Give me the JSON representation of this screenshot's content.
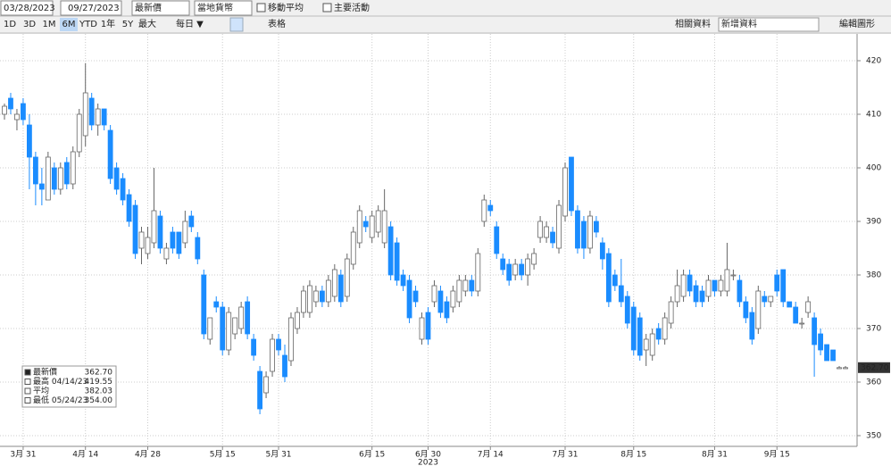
{
  "toolbar": {
    "start_date": "03/28/2023",
    "end_date": "09/27/2023",
    "price_field": "最新價",
    "currency": "當地貨幣",
    "moving_avg": "移動平均",
    "events": "主要活動",
    "periods": [
      "1D",
      "3D",
      "1M",
      "6M",
      "YTD",
      "1年",
      "5Y",
      "最大"
    ],
    "active_period": "6M",
    "frequency": "每日 ▼",
    "table": "表格",
    "related": "相關資料",
    "add_data": "新增資料",
    "edit": "編輯圖形"
  },
  "chart_data": {
    "type": "candlestick",
    "up_color": "#ffffff",
    "up_stroke": "#666666",
    "down_color": "#1a8cff",
    "ylim": [
      348,
      425
    ],
    "yticks": [
      350,
      360,
      370,
      380,
      390,
      400,
      410,
      420
    ],
    "grid": true,
    "x_year": "2023",
    "last_label": {
      "value": 362.7,
      "label": "362.70"
    },
    "legend": [
      {
        "label": "最新價",
        "value": "362.70"
      },
      {
        "label": "最高 04/14/23",
        "value": "419.55"
      },
      {
        "label": "平均",
        "value": "382.03"
      },
      {
        "label": "最低 05/24/23",
        "value": "354.00"
      }
    ],
    "categories": [
      null,
      null,
      null,
      "3月 31",
      null,
      null,
      null,
      null,
      null,
      null,
      null,
      null,
      null,
      "4月 14",
      null,
      null,
      null,
      null,
      null,
      null,
      null,
      null,
      null,
      "4月 28",
      null,
      null,
      null,
      null,
      null,
      null,
      null,
      null,
      null,
      null,
      null,
      "5月 15",
      null,
      null,
      null,
      null,
      null,
      null,
      null,
      null,
      "5月 31",
      null,
      null,
      null,
      null,
      null,
      null,
      null,
      null,
      null,
      null,
      null,
      null,
      null,
      null,
      "6月 15",
      null,
      null,
      null,
      null,
      null,
      null,
      null,
      null,
      "6月 30",
      null,
      null,
      null,
      null,
      null,
      null,
      null,
      null,
      null,
      "7月 14",
      null,
      null,
      null,
      null,
      null,
      null,
      null,
      null,
      null,
      null,
      null,
      "7月 31",
      null,
      null,
      null,
      null,
      null,
      null,
      null,
      null,
      null,
      null,
      "8月 15",
      null,
      null,
      null,
      null,
      null,
      null,
      null,
      null,
      null,
      null,
      null,
      null,
      "8月 31",
      null,
      null,
      null,
      null,
      null,
      null,
      null,
      null,
      null,
      "9月 15",
      null,
      null,
      null,
      null,
      null,
      null,
      null,
      null,
      null,
      null,
      null
    ],
    "ohlc": [
      [
        410,
        412,
        409,
        411.5
      ],
      [
        413,
        414,
        410,
        411
      ],
      [
        409,
        411,
        407,
        410
      ],
      [
        412,
        413,
        408,
        409
      ],
      [
        408,
        410,
        396,
        402
      ],
      [
        402,
        403,
        393,
        397
      ],
      [
        397,
        400,
        393,
        396
      ],
      [
        394,
        403,
        394,
        402
      ],
      [
        400,
        401,
        395,
        396
      ],
      [
        396,
        401,
        395,
        400
      ],
      [
        401,
        402,
        396,
        397
      ],
      [
        397,
        404,
        396,
        403
      ],
      [
        403,
        411,
        402,
        410
      ],
      [
        406,
        419.55,
        404,
        414
      ],
      [
        413,
        414,
        407,
        408
      ],
      [
        408,
        412,
        406,
        411
      ],
      [
        411,
        411,
        407,
        408
      ],
      [
        407,
        408,
        397,
        398
      ],
      [
        400,
        401,
        395,
        396
      ],
      [
        398,
        399,
        393,
        394
      ],
      [
        395,
        396,
        389,
        390
      ],
      [
        393,
        394,
        383,
        384
      ],
      [
        385,
        389,
        382,
        388
      ],
      [
        384,
        389,
        383,
        387
      ],
      [
        386,
        400,
        385,
        392
      ],
      [
        391,
        392,
        384,
        385
      ],
      [
        383,
        386,
        382,
        385
      ],
      [
        388,
        389,
        384,
        385
      ],
      [
        388,
        388,
        383,
        384
      ],
      [
        386,
        392,
        385,
        390
      ],
      [
        391,
        392,
        388,
        389
      ],
      [
        387,
        388,
        382,
        383
      ],
      [
        380,
        381,
        368,
        369
      ],
      [
        368,
        372,
        367,
        372
      ],
      [
        375,
        376,
        373,
        374
      ],
      [
        374,
        375,
        365,
        366
      ],
      [
        366,
        374,
        365,
        373
      ],
      [
        369,
        372,
        368,
        372
      ],
      [
        370,
        375,
        369,
        374
      ],
      [
        375,
        376,
        368,
        369
      ],
      [
        368,
        369,
        364,
        365
      ],
      [
        362,
        363,
        354,
        355
      ],
      [
        358,
        362,
        357,
        361
      ],
      [
        362,
        369,
        361,
        368
      ],
      [
        368,
        369,
        365,
        366
      ],
      [
        365,
        367,
        360,
        361
      ],
      [
        364,
        373,
        363,
        372
      ],
      [
        370,
        374,
        369,
        373
      ],
      [
        373,
        378,
        372,
        377
      ],
      [
        373,
        379,
        372,
        378
      ],
      [
        375,
        378,
        374,
        377
      ],
      [
        377,
        378,
        374,
        375
      ],
      [
        375,
        380,
        374,
        379
      ],
      [
        376,
        382,
        375,
        381
      ],
      [
        380,
        381,
        374,
        375
      ],
      [
        376,
        384,
        375,
        383
      ],
      [
        382,
        389,
        381,
        388
      ],
      [
        386,
        393,
        385,
        392
      ],
      [
        390,
        391,
        388,
        389
      ],
      [
        387,
        392,
        386,
        391
      ],
      [
        388,
        393,
        387,
        392
      ],
      [
        386,
        396,
        385,
        392
      ],
      [
        389,
        390,
        379,
        380
      ],
      [
        386,
        387,
        378,
        379
      ],
      [
        380,
        381,
        377,
        378
      ],
      [
        379,
        380,
        371,
        372
      ],
      [
        377,
        378,
        374,
        375
      ],
      [
        368,
        373,
        367,
        372
      ],
      [
        373,
        374,
        367,
        368
      ],
      [
        375,
        379,
        374,
        378
      ],
      [
        377,
        378,
        372,
        373
      ],
      [
        375,
        376,
        371,
        372
      ],
      [
        374,
        378,
        373,
        377
      ],
      [
        375,
        380,
        374,
        379
      ],
      [
        377,
        380,
        376,
        379
      ],
      [
        379,
        380,
        376,
        377
      ],
      [
        377,
        385,
        376,
        384
      ],
      [
        390,
        395,
        389,
        394
      ],
      [
        393,
        394,
        391,
        392
      ],
      [
        389,
        390,
        383,
        384
      ],
      [
        383,
        384,
        380,
        381
      ],
      [
        382,
        383,
        378,
        379
      ],
      [
        380,
        383,
        379,
        382
      ],
      [
        382,
        383,
        379,
        380
      ],
      [
        380,
        384,
        378,
        383
      ],
      [
        382,
        385,
        381,
        384
      ],
      [
        387,
        391,
        386,
        390
      ],
      [
        387,
        390,
        386,
        389
      ],
      [
        388,
        389,
        385,
        386
      ],
      [
        385,
        394,
        384,
        393
      ],
      [
        391,
        401,
        390,
        400
      ],
      [
        402,
        402,
        391,
        392
      ],
      [
        392,
        393,
        384,
        385
      ],
      [
        390,
        391,
        383,
        385
      ],
      [
        385,
        392,
        384,
        391
      ],
      [
        390,
        391,
        387,
        388
      ],
      [
        386,
        387,
        381,
        383
      ],
      [
        384,
        385,
        374,
        375
      ],
      [
        380,
        381,
        377,
        378
      ],
      [
        378,
        383,
        374,
        375
      ],
      [
        376,
        377,
        370,
        371
      ],
      [
        374,
        375,
        365,
        366
      ],
      [
        372,
        373,
        364,
        365
      ],
      [
        366,
        369,
        363,
        368
      ],
      [
        365,
        370,
        364,
        369
      ],
      [
        370,
        371,
        367,
        368
      ],
      [
        368,
        373,
        367,
        372
      ],
      [
        371,
        376,
        370,
        375
      ],
      [
        375,
        381,
        374,
        378
      ],
      [
        376,
        381,
        375,
        380
      ],
      [
        380,
        381,
        376,
        377
      ],
      [
        378,
        379,
        374,
        375
      ],
      [
        377,
        378,
        374,
        375
      ],
      [
        376,
        380,
        375,
        379
      ],
      [
        379,
        379,
        376,
        377
      ],
      [
        377,
        380,
        376,
        379
      ],
      [
        377,
        386,
        376,
        381
      ],
      [
        380,
        381,
        379,
        380
      ],
      [
        379,
        380,
        374,
        375
      ],
      [
        375,
        376,
        371,
        372
      ],
      [
        373,
        374,
        367,
        368
      ],
      [
        370,
        378,
        369,
        377
      ],
      [
        376,
        377,
        374,
        375
      ],
      [
        375,
        376,
        374,
        376
      ],
      [
        380,
        381,
        376,
        377
      ],
      [
        381,
        381,
        374,
        375
      ],
      [
        375,
        375,
        374,
        374
      ],
      [
        374,
        375,
        371,
        371
      ],
      [
        371,
        372,
        370,
        371
      ],
      [
        373,
        376,
        372,
        375
      ],
      [
        372,
        373,
        361,
        367
      ],
      [
        369,
        370,
        365,
        366
      ],
      [
        367,
        367,
        364,
        364
      ],
      [
        366,
        366,
        364,
        364
      ],
      [
        362.5,
        363,
        362.5,
        362.7
      ],
      [
        362.5,
        363,
        362.5,
        362.7
      ]
    ]
  }
}
